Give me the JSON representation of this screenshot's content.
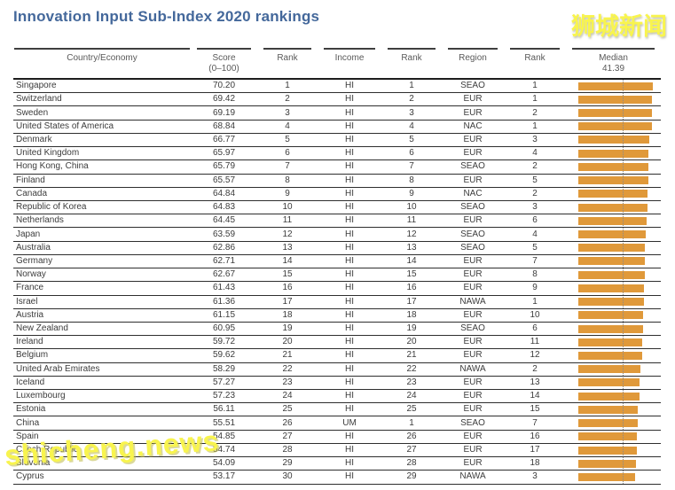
{
  "page": {
    "title": "Innovation Input Sub-Index 2020 rankings",
    "watermark_top": "狮城新闻",
    "watermark_bottom": "shicheng.news"
  },
  "colors": {
    "title": "#44689B",
    "bar": "#E0993A",
    "watermark": "#F8F44E",
    "header_text": "#595959",
    "row_text": "#3C3C3C",
    "grid_line": "#2E2E2E"
  },
  "chart_data": {
    "type": "table",
    "title": "Innovation Input Sub-Index 2020 rankings",
    "median": 41.39,
    "bar_axis": {
      "min": 0,
      "max": 100,
      "note": "orange bars proportional to Score, dotted line marks median 41.39"
    },
    "columns": [
      {
        "label": "Country/Economy"
      },
      {
        "label": "Score",
        "sub": "(0–100)"
      },
      {
        "label": "Rank"
      },
      {
        "label": "Income"
      },
      {
        "label": "Rank"
      },
      {
        "label": "Region"
      },
      {
        "label": "Rank"
      },
      {
        "label": "Median",
        "sub": "41.39"
      }
    ],
    "rows": [
      {
        "country": "Singapore",
        "score": "70.20",
        "rank": 1,
        "income": "HI",
        "income_rank": 1,
        "region": "SEAO",
        "region_rank": 1
      },
      {
        "country": "Switzerland",
        "score": "69.42",
        "rank": 2,
        "income": "HI",
        "income_rank": 2,
        "region": "EUR",
        "region_rank": 1
      },
      {
        "country": "Sweden",
        "score": "69.19",
        "rank": 3,
        "income": "HI",
        "income_rank": 3,
        "region": "EUR",
        "region_rank": 2
      },
      {
        "country": "United States of America",
        "score": "68.84",
        "rank": 4,
        "income": "HI",
        "income_rank": 4,
        "region": "NAC",
        "region_rank": 1
      },
      {
        "country": "Denmark",
        "score": "66.77",
        "rank": 5,
        "income": "HI",
        "income_rank": 5,
        "region": "EUR",
        "region_rank": 3
      },
      {
        "country": "United Kingdom",
        "score": "65.97",
        "rank": 6,
        "income": "HI",
        "income_rank": 6,
        "region": "EUR",
        "region_rank": 4
      },
      {
        "country": "Hong Kong, China",
        "score": "65.79",
        "rank": 7,
        "income": "HI",
        "income_rank": 7,
        "region": "SEAO",
        "region_rank": 2
      },
      {
        "country": "Finland",
        "score": "65.57",
        "rank": 8,
        "income": "HI",
        "income_rank": 8,
        "region": "EUR",
        "region_rank": 5
      },
      {
        "country": "Canada",
        "score": "64.84",
        "rank": 9,
        "income": "HI",
        "income_rank": 9,
        "region": "NAC",
        "region_rank": 2
      },
      {
        "country": "Republic of Korea",
        "score": "64.83",
        "rank": 10,
        "income": "HI",
        "income_rank": 10,
        "region": "SEAO",
        "region_rank": 3
      },
      {
        "country": "Netherlands",
        "score": "64.45",
        "rank": 11,
        "income": "HI",
        "income_rank": 11,
        "region": "EUR",
        "region_rank": 6
      },
      {
        "country": "Japan",
        "score": "63.59",
        "rank": 12,
        "income": "HI",
        "income_rank": 12,
        "region": "SEAO",
        "region_rank": 4
      },
      {
        "country": "Australia",
        "score": "62.86",
        "rank": 13,
        "income": "HI",
        "income_rank": 13,
        "region": "SEAO",
        "region_rank": 5
      },
      {
        "country": "Germany",
        "score": "62.71",
        "rank": 14,
        "income": "HI",
        "income_rank": 14,
        "region": "EUR",
        "region_rank": 7
      },
      {
        "country": "Norway",
        "score": "62.67",
        "rank": 15,
        "income": "HI",
        "income_rank": 15,
        "region": "EUR",
        "region_rank": 8
      },
      {
        "country": "France",
        "score": "61.43",
        "rank": 16,
        "income": "HI",
        "income_rank": 16,
        "region": "EUR",
        "region_rank": 9
      },
      {
        "country": "Israel",
        "score": "61.36",
        "rank": 17,
        "income": "HI",
        "income_rank": 17,
        "region": "NAWA",
        "region_rank": 1
      },
      {
        "country": "Austria",
        "score": "61.15",
        "rank": 18,
        "income": "HI",
        "income_rank": 18,
        "region": "EUR",
        "region_rank": 10
      },
      {
        "country": "New Zealand",
        "score": "60.95",
        "rank": 19,
        "income": "HI",
        "income_rank": 19,
        "region": "SEAO",
        "region_rank": 6
      },
      {
        "country": "Ireland",
        "score": "59.72",
        "rank": 20,
        "income": "HI",
        "income_rank": 20,
        "region": "EUR",
        "region_rank": 11
      },
      {
        "country": "Belgium",
        "score": "59.62",
        "rank": 21,
        "income": "HI",
        "income_rank": 21,
        "region": "EUR",
        "region_rank": 12
      },
      {
        "country": "United Arab Emirates",
        "score": "58.29",
        "rank": 22,
        "income": "HI",
        "income_rank": 22,
        "region": "NAWA",
        "region_rank": 2
      },
      {
        "country": "Iceland",
        "score": "57.27",
        "rank": 23,
        "income": "HI",
        "income_rank": 23,
        "region": "EUR",
        "region_rank": 13
      },
      {
        "country": "Luxembourg",
        "score": "57.23",
        "rank": 24,
        "income": "HI",
        "income_rank": 24,
        "region": "EUR",
        "region_rank": 14
      },
      {
        "country": "Estonia",
        "score": "56.11",
        "rank": 25,
        "income": "HI",
        "income_rank": 25,
        "region": "EUR",
        "region_rank": 15
      },
      {
        "country": "China",
        "score": "55.51",
        "rank": 26,
        "income": "UM",
        "income_rank": 1,
        "region": "SEAO",
        "region_rank": 7
      },
      {
        "country": "Spain",
        "score": "54.85",
        "rank": 27,
        "income": "HI",
        "income_rank": 26,
        "region": "EUR",
        "region_rank": 16
      },
      {
        "country": "Czech Republic",
        "score": "54.74",
        "rank": 28,
        "income": "HI",
        "income_rank": 27,
        "region": "EUR",
        "region_rank": 17
      },
      {
        "country": "Slovenia",
        "score": "54.09",
        "rank": 29,
        "income": "HI",
        "income_rank": 28,
        "region": "EUR",
        "region_rank": 18
      },
      {
        "country": "Cyprus",
        "score": "53.17",
        "rank": 30,
        "income": "HI",
        "income_rank": 29,
        "region": "NAWA",
        "region_rank": 3
      }
    ]
  }
}
